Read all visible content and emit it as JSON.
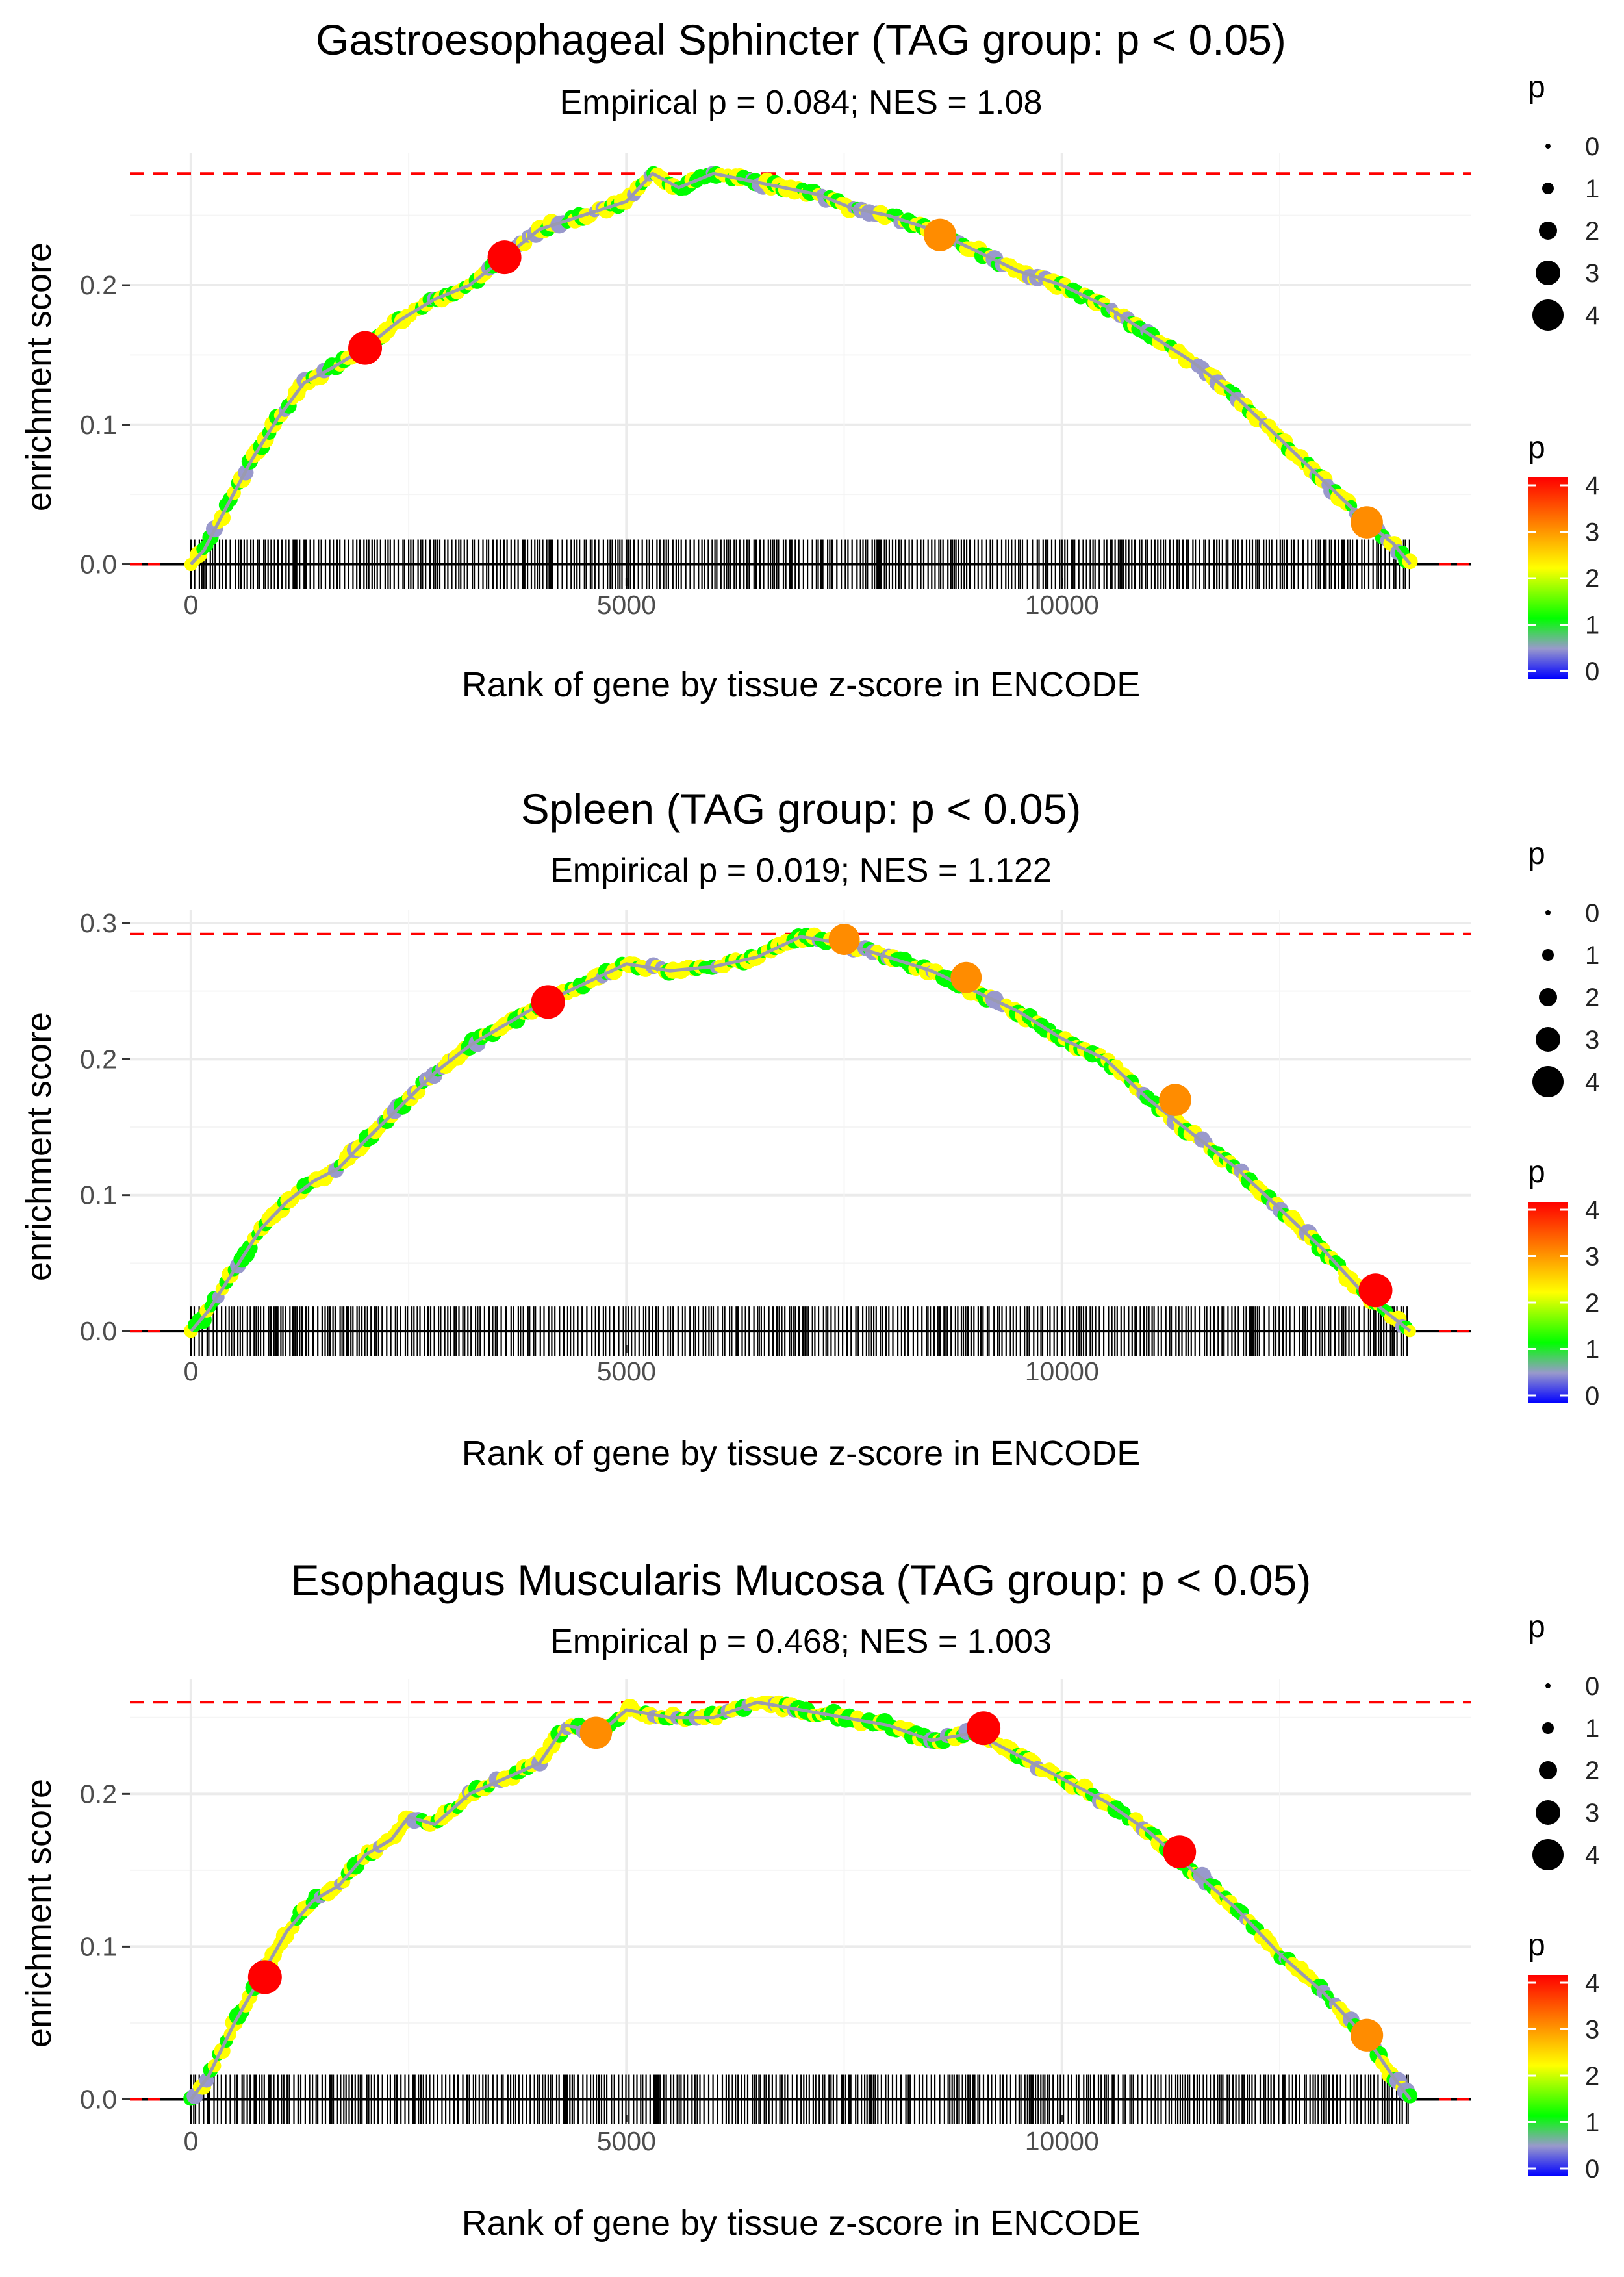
{
  "chart_data": [
    {
      "type": "line",
      "title": "Gastroesophageal Sphincter (TAG group: p < 0.05)",
      "subtitle": "Empirical p = 0.084; NES = 1.08",
      "xlabel": "Rank of gene by tissue z-score in ENCODE",
      "ylabel": "enrichment score",
      "xlim": [
        -700,
        14700
      ],
      "ylim": [
        -0.01,
        0.295
      ],
      "x_ticks": [
        0,
        5000,
        10000
      ],
      "x_tick_labels": [
        "0",
        "5000",
        "10000"
      ],
      "y_ticks": [
        0.0,
        0.1,
        0.2
      ],
      "y_tick_labels": [
        "0.0",
        "0.1",
        "0.2"
      ],
      "max_es": 0.28,
      "n_genes": 14000,
      "curve": {
        "x": [
          0,
          150,
          400,
          700,
          1000,
          1300,
          1600,
          2000,
          2400,
          2800,
          3200,
          3600,
          4000,
          4500,
          5000,
          5300,
          5600,
          6000,
          6400,
          6800,
          7200,
          7600,
          8000,
          8500,
          9000,
          9500,
          10000,
          10500,
          11000,
          11500,
          12000,
          12500,
          13000,
          13500,
          13800,
          14000
        ],
        "y": [
          0.0,
          0.01,
          0.04,
          0.075,
          0.105,
          0.13,
          0.14,
          0.155,
          0.175,
          0.19,
          0.2,
          0.22,
          0.24,
          0.25,
          0.26,
          0.28,
          0.27,
          0.28,
          0.275,
          0.27,
          0.265,
          0.255,
          0.25,
          0.24,
          0.225,
          0.21,
          0.2,
          0.185,
          0.165,
          0.145,
          0.12,
          0.09,
          0.06,
          0.03,
          0.015,
          0.0
        ]
      },
      "highlight_points": [
        {
          "x": 2000,
          "y": 0.155,
          "p": 4
        },
        {
          "x": 3600,
          "y": 0.22,
          "p": 4
        },
        {
          "x": 8600,
          "y": 0.236,
          "p": 3.7
        },
        {
          "x": 13500,
          "y": 0.03,
          "p": 3.6
        }
      ]
    },
    {
      "type": "line",
      "title": "Spleen (TAG group: p < 0.05)",
      "subtitle": "Empirical p = 0.019; NES = 1.122",
      "xlabel": "Rank of gene by tissue z-score in ENCODE",
      "ylabel": "enrichment score",
      "xlim": [
        -700,
        14700
      ],
      "ylim": [
        -0.01,
        0.31
      ],
      "x_ticks": [
        0,
        5000,
        10000
      ],
      "x_tick_labels": [
        "0",
        "5000",
        "10000"
      ],
      "y_ticks": [
        0.0,
        0.1,
        0.2,
        0.3
      ],
      "y_tick_labels": [
        "0.0",
        "0.1",
        "0.2",
        "0.3"
      ],
      "max_es": 0.292,
      "n_genes": 14000,
      "curve": {
        "x": [
          0,
          200,
          500,
          800,
          1100,
          1400,
          1700,
          2000,
          2400,
          2800,
          3200,
          3600,
          4000,
          4500,
          5000,
          5500,
          6000,
          6500,
          7000,
          7500,
          8000,
          8500,
          9000,
          9500,
          10000,
          10500,
          11000,
          11500,
          12000,
          12500,
          13000,
          13500,
          13800,
          14000
        ],
        "y": [
          0.0,
          0.015,
          0.045,
          0.075,
          0.095,
          0.11,
          0.12,
          0.14,
          0.165,
          0.19,
          0.21,
          0.225,
          0.24,
          0.255,
          0.27,
          0.265,
          0.268,
          0.275,
          0.29,
          0.285,
          0.275,
          0.265,
          0.25,
          0.235,
          0.215,
          0.2,
          0.17,
          0.145,
          0.12,
          0.09,
          0.06,
          0.025,
          0.01,
          0.0
        ]
      },
      "highlight_points": [
        {
          "x": 4100,
          "y": 0.242,
          "p": 4
        },
        {
          "x": 7500,
          "y": 0.288,
          "p": 3.3
        },
        {
          "x": 8900,
          "y": 0.26,
          "p": 3.3
        },
        {
          "x": 11300,
          "y": 0.17,
          "p": 3.6
        },
        {
          "x": 13600,
          "y": 0.03,
          "p": 4
        }
      ]
    },
    {
      "type": "line",
      "title": "Esophagus Muscularis Mucosa (TAG group: p < 0.05)",
      "subtitle": "Empirical p = 0.468; NES = 1.003",
      "xlabel": "Rank of gene by tissue z-score in ENCODE",
      "ylabel": "enrichment score",
      "xlim": [
        -700,
        14700
      ],
      "ylim": [
        -0.01,
        0.275
      ],
      "x_ticks": [
        0,
        5000,
        10000
      ],
      "x_tick_labels": [
        "0",
        "5000",
        "10000"
      ],
      "y_ticks": [
        0.0,
        0.1,
        0.2
      ],
      "y_tick_labels": [
        "0.0",
        "0.1",
        "0.2"
      ],
      "max_es": 0.26,
      "n_genes": 14000,
      "curve": {
        "x": [
          0,
          200,
          500,
          800,
          1100,
          1400,
          1700,
          2000,
          2300,
          2500,
          2800,
          3200,
          3600,
          4000,
          4300,
          4700,
          5000,
          5500,
          6000,
          6500,
          7000,
          7500,
          8000,
          8500,
          9000,
          9500,
          10000,
          10500,
          11000,
          11500,
          12000,
          12500,
          13000,
          13500,
          13800,
          14000
        ],
        "y": [
          0.0,
          0.015,
          0.05,
          0.08,
          0.11,
          0.13,
          0.14,
          0.16,
          0.17,
          0.185,
          0.18,
          0.2,
          0.21,
          0.22,
          0.245,
          0.24,
          0.255,
          0.25,
          0.25,
          0.26,
          0.255,
          0.25,
          0.245,
          0.235,
          0.24,
          0.225,
          0.21,
          0.195,
          0.175,
          0.15,
          0.125,
          0.095,
          0.07,
          0.04,
          0.015,
          0.0
        ]
      },
      "highlight_points": [
        {
          "x": 850,
          "y": 0.08,
          "p": 4
        },
        {
          "x": 4650,
          "y": 0.24,
          "p": 3.6
        },
        {
          "x": 9100,
          "y": 0.243,
          "p": 4
        },
        {
          "x": 11350,
          "y": 0.162,
          "p": 3.8
        },
        {
          "x": 13500,
          "y": 0.042,
          "p": 3.7
        }
      ]
    }
  ],
  "legend": {
    "size_title": "p",
    "size_labels": [
      "0",
      "1",
      "2",
      "3",
      "4"
    ],
    "color_title": "p",
    "color_labels": [
      "4",
      "3",
      "2",
      "1",
      "0"
    ],
    "colors": {
      "p4": "#ff0000",
      "p3": "#ff8c00",
      "p2": "#ffff00",
      "p1": "#00ff00",
      "p0": "#0000ff",
      "mid": "#9999cc"
    }
  }
}
